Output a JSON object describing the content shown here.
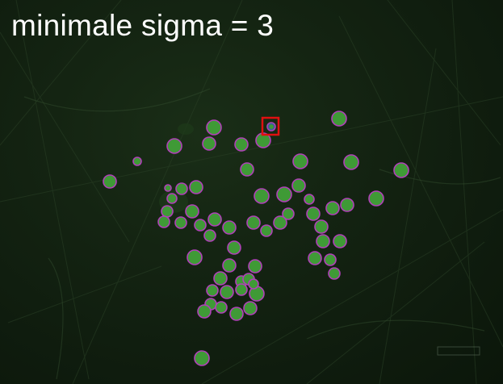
{
  "overlay": {
    "title": "minimale sigma = 3"
  },
  "detection": {
    "spot_marker_color": "#b040b8",
    "highlight_box_color": "#e01010",
    "spot_count": 72,
    "highlighted_spot_count": 1
  },
  "colors": {
    "background": "#132211",
    "spot_fill": "#3f9a36"
  }
}
